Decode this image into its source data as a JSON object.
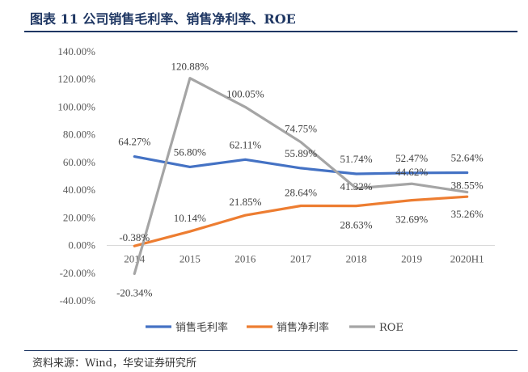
{
  "header": {
    "title": "图表 11  公司销售毛利率、销售净利率、ROE"
  },
  "footer": {
    "source": "资料来源：Wind，华安证券研究所"
  },
  "chart_data": {
    "type": "line",
    "title": "公司销售毛利率、销售净利率、ROE",
    "categories": [
      "2014",
      "2015",
      "2016",
      "2017",
      "2018",
      "2019",
      "2020H1"
    ],
    "ylim": [
      -40,
      140
    ],
    "ytick_step": 20,
    "ytick_labels": [
      "-40.00%",
      "-20.00%",
      "0.00%",
      "20.00%",
      "40.00%",
      "60.00%",
      "80.00%",
      "100.00%",
      "120.00%",
      "140.00%"
    ],
    "grid": false,
    "legend_position": "bottom",
    "series": [
      {
        "name": "销售毛利率",
        "color": "#4472c4",
        "values": [
          64.27,
          56.8,
          62.11,
          55.89,
          51.74,
          52.47,
          52.64
        ],
        "labels": [
          "64.27%",
          "56.80%",
          "62.11%",
          "55.89%",
          "51.74%",
          "52.47%",
          "52.64%"
        ]
      },
      {
        "name": "销售净利率",
        "color": "#ed7d31",
        "values": [
          -0.38,
          10.14,
          21.85,
          28.64,
          28.63,
          32.69,
          35.26
        ],
        "labels": [
          "-0.38%",
          "10.14%",
          "21.85%",
          "28.64%",
          "28.63%",
          "32.69%",
          "35.26%"
        ]
      },
      {
        "name": "ROE",
        "color": "#a5a5a5",
        "values": [
          -20.34,
          120.88,
          100.05,
          74.75,
          41.32,
          44.62,
          38.55
        ],
        "labels": [
          "-20.34%",
          "120.88%",
          "100.05%",
          "74.75%",
          "41.32%",
          "44.62%",
          "38.55%"
        ]
      }
    ]
  }
}
